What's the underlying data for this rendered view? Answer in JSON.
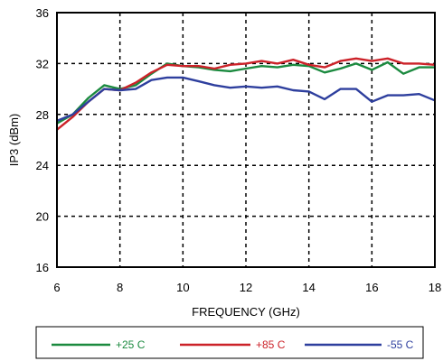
{
  "chart_data": {
    "type": "line",
    "xlabel": "FREQUENCY (GHz)",
    "ylabel": "IP3 (dBm)",
    "xlim": [
      6,
      18
    ],
    "ylim": [
      16,
      36
    ],
    "x_ticks": [
      6,
      8,
      10,
      12,
      14,
      16,
      18
    ],
    "y_ticks": [
      16,
      20,
      24,
      28,
      32,
      36
    ],
    "grid": true,
    "legend_position": "bottom",
    "series": [
      {
        "name": "+25 C",
        "color": "#1b8a3f",
        "x": [
          6.0,
          6.5,
          7.0,
          7.5,
          8.0,
          8.5,
          9.0,
          9.5,
          10.0,
          10.5,
          11.0,
          11.5,
          12.0,
          12.5,
          13.0,
          13.5,
          14.0,
          14.5,
          15.0,
          15.5,
          16.0,
          16.5,
          17.0,
          17.5,
          18.0
        ],
        "values": [
          27.3,
          28.0,
          29.3,
          30.3,
          30.0,
          30.3,
          31.2,
          32.0,
          31.8,
          31.7,
          31.5,
          31.4,
          31.6,
          31.8,
          31.7,
          31.9,
          31.8,
          31.3,
          31.6,
          32.0,
          31.5,
          32.1,
          31.2,
          31.7,
          31.7
        ]
      },
      {
        "name": "+85 C",
        "color": "#cc2229",
        "x": [
          6.0,
          6.5,
          7.0,
          7.5,
          8.0,
          8.5,
          9.0,
          9.5,
          10.0,
          10.5,
          11.0,
          11.5,
          12.0,
          12.5,
          13.0,
          13.5,
          14.0,
          14.5,
          15.0,
          15.5,
          16.0,
          16.5,
          17.0,
          17.5,
          18.0
        ],
        "values": [
          26.8,
          27.8,
          29.0,
          30.0,
          29.9,
          30.5,
          31.3,
          31.9,
          31.8,
          31.8,
          31.6,
          31.9,
          32.0,
          32.2,
          32.0,
          32.3,
          31.9,
          31.7,
          32.2,
          32.4,
          32.2,
          32.4,
          32.0,
          32.0,
          31.9
        ]
      },
      {
        "name": "-55 C",
        "color": "#2e3f9e",
        "x": [
          6.0,
          6.5,
          7.0,
          7.5,
          8.0,
          8.5,
          9.0,
          9.5,
          10.0,
          10.5,
          11.0,
          11.5,
          12.0,
          12.5,
          13.0,
          13.5,
          14.0,
          14.5,
          15.0,
          15.5,
          16.0,
          16.5,
          17.0,
          17.5,
          18.0
        ],
        "values": [
          27.5,
          28.0,
          29.0,
          30.0,
          29.9,
          30.0,
          30.7,
          30.9,
          30.9,
          30.6,
          30.3,
          30.1,
          30.2,
          30.1,
          30.2,
          29.9,
          29.8,
          29.2,
          30.0,
          30.0,
          29.0,
          29.5,
          29.5,
          29.6,
          29.1
        ]
      }
    ]
  }
}
